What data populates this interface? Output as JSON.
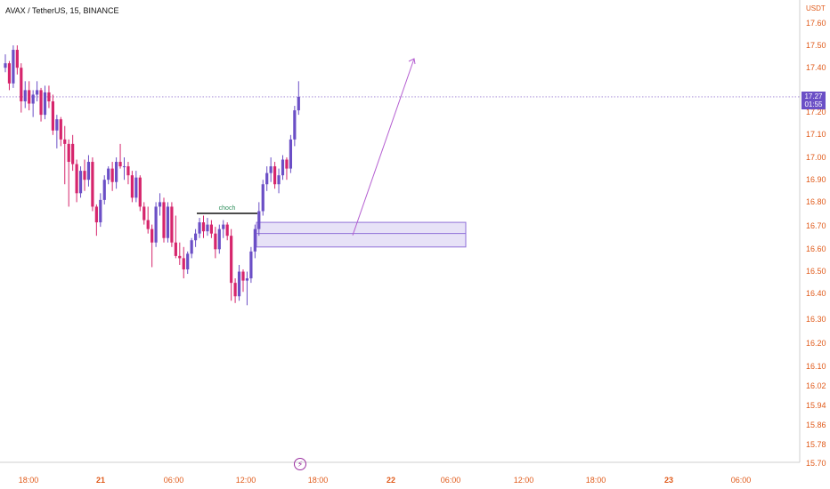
{
  "header": {
    "symbol_title": "AVAX / TetherUS, 15, BINANCE"
  },
  "price_axis": {
    "currency": "USDT",
    "ticks": [
      "17.60",
      "17.50",
      "17.40",
      "17.20",
      "17.10",
      "17.00",
      "16.90",
      "16.80",
      "16.70",
      "16.60",
      "16.50",
      "16.40",
      "16.30",
      "16.20",
      "16.10",
      "16.02",
      "15.94",
      "15.86",
      "15.78",
      "15.70"
    ],
    "current_price": "17.27",
    "countdown": "01:55"
  },
  "time_axis": {
    "ticks": [
      {
        "label": "18:00",
        "bold": false
      },
      {
        "label": "21",
        "bold": true
      },
      {
        "label": "06:00",
        "bold": false
      },
      {
        "label": "12:00",
        "bold": false
      },
      {
        "label": "18:00",
        "bold": false
      },
      {
        "label": "22",
        "bold": true
      },
      {
        "label": "06:00",
        "bold": false
      },
      {
        "label": "12:00",
        "bold": false
      },
      {
        "label": "18:00",
        "bold": false
      },
      {
        "label": "23",
        "bold": true
      },
      {
        "label": "06:00",
        "bold": false
      }
    ]
  },
  "annotations": {
    "choch_label": "choch",
    "flash_icon": "lightning-icon"
  },
  "colors": {
    "up": "#6b4fc6",
    "down": "#d6256c",
    "zone_fill": "#e7e2f7",
    "zone_border": "#8f6fd8",
    "arrow": "#b55fd1",
    "price_line": "#9c7fd4",
    "axis_text": "#e05a1a"
  },
  "chart_data": {
    "type": "candlestick",
    "symbol": "AVAX / TetherUS",
    "interval": "15",
    "exchange": "BINANCE",
    "ylim": [
      15.7,
      17.62
    ],
    "last_price": 17.27,
    "candles": [
      [
        17.4,
        17.46,
        17.38,
        17.42
      ],
      [
        17.42,
        17.43,
        17.3,
        17.33
      ],
      [
        17.33,
        17.5,
        17.31,
        17.48
      ],
      [
        17.48,
        17.5,
        17.37,
        17.4
      ],
      [
        17.4,
        17.42,
        17.2,
        17.25
      ],
      [
        17.25,
        17.34,
        17.22,
        17.3
      ],
      [
        17.3,
        17.34,
        17.21,
        17.24
      ],
      [
        17.24,
        17.3,
        17.18,
        17.28
      ],
      [
        17.28,
        17.34,
        17.25,
        17.3
      ],
      [
        17.3,
        17.31,
        17.16,
        17.19
      ],
      [
        17.19,
        17.32,
        17.17,
        17.29
      ],
      [
        17.29,
        17.32,
        17.22,
        17.25
      ],
      [
        17.25,
        17.28,
        17.1,
        17.12
      ],
      [
        17.12,
        17.19,
        17.04,
        17.17
      ],
      [
        17.17,
        17.18,
        17.05,
        17.08
      ],
      [
        17.08,
        17.14,
        16.88,
        17.06
      ],
      [
        17.06,
        17.08,
        16.78,
        16.98
      ],
      [
        17.06,
        17.1,
        16.94,
        16.97
      ],
      [
        16.97,
        16.99,
        16.8,
        16.84
      ],
      [
        16.84,
        16.96,
        16.82,
        16.94
      ],
      [
        16.94,
        16.99,
        16.85,
        16.9
      ],
      [
        16.9,
        17.01,
        16.87,
        16.98
      ],
      [
        16.98,
        17.0,
        16.76,
        16.78
      ],
      [
        16.78,
        16.79,
        16.65,
        16.71
      ],
      [
        16.71,
        16.84,
        16.69,
        16.81
      ],
      [
        16.81,
        16.92,
        16.79,
        16.9
      ],
      [
        16.9,
        16.96,
        16.88,
        16.95
      ],
      [
        16.95,
        16.98,
        16.85,
        16.89
      ],
      [
        16.89,
        17.0,
        16.86,
        16.98
      ],
      [
        16.98,
        17.06,
        16.95,
        16.96
      ],
      [
        16.96,
        17.0,
        16.9,
        16.96
      ],
      [
        16.96,
        16.98,
        16.88,
        16.92
      ],
      [
        16.92,
        16.94,
        16.8,
        16.82
      ],
      [
        16.82,
        16.94,
        16.8,
        16.91
      ],
      [
        16.91,
        16.92,
        16.76,
        16.78
      ],
      [
        16.78,
        16.8,
        16.7,
        16.72
      ],
      [
        16.72,
        16.78,
        16.66,
        16.68
      ],
      [
        16.68,
        16.7,
        16.51,
        16.62
      ],
      [
        16.62,
        16.8,
        16.6,
        16.78
      ],
      [
        16.78,
        16.84,
        16.74,
        16.8
      ],
      [
        16.8,
        16.82,
        16.62,
        16.64
      ],
      [
        16.64,
        16.8,
        16.62,
        16.78
      ],
      [
        16.78,
        16.8,
        16.6,
        16.62
      ],
      [
        16.62,
        16.74,
        16.55,
        16.56
      ],
      [
        16.56,
        16.62,
        16.52,
        16.55
      ],
      [
        16.55,
        16.6,
        16.46,
        16.5
      ],
      [
        16.5,
        16.58,
        16.48,
        16.57
      ],
      [
        16.57,
        16.64,
        16.55,
        16.63
      ],
      [
        16.63,
        16.68,
        16.6,
        16.66
      ],
      [
        16.66,
        16.73,
        16.64,
        16.71
      ],
      [
        16.71,
        16.74,
        16.64,
        16.67
      ],
      [
        16.67,
        16.73,
        16.65,
        16.7
      ],
      [
        16.7,
        16.72,
        16.64,
        16.66
      ],
      [
        16.66,
        16.69,
        16.55,
        16.59
      ],
      [
        16.59,
        16.7,
        16.57,
        16.68
      ],
      [
        16.68,
        16.72,
        16.64,
        16.7
      ],
      [
        16.7,
        16.71,
        16.63,
        16.65
      ],
      [
        16.65,
        16.68,
        16.36,
        16.44
      ],
      [
        16.44,
        16.46,
        16.35,
        16.38
      ],
      [
        16.38,
        16.52,
        16.36,
        16.49
      ],
      [
        16.49,
        16.5,
        16.4,
        16.45
      ],
      [
        16.45,
        16.49,
        16.34,
        16.46
      ],
      [
        16.46,
        16.6,
        16.44,
        16.58
      ],
      [
        16.58,
        16.7,
        16.55,
        16.68
      ],
      [
        16.68,
        16.8,
        16.65,
        16.76
      ],
      [
        16.76,
        16.9,
        16.74,
        16.88
      ],
      [
        16.88,
        16.96,
        16.85,
        16.93
      ],
      [
        16.93,
        17.0,
        16.89,
        16.96
      ],
      [
        16.96,
        16.98,
        16.86,
        16.88
      ],
      [
        16.88,
        16.95,
        16.84,
        16.92
      ],
      [
        16.92,
        17.01,
        16.9,
        16.99
      ],
      [
        16.99,
        17.0,
        16.9,
        16.95
      ],
      [
        16.95,
        17.1,
        16.93,
        17.08
      ],
      [
        17.08,
        17.23,
        17.05,
        17.21
      ],
      [
        17.21,
        17.34,
        17.19,
        17.27
      ]
    ],
    "zones": [
      {
        "label": "demand-zone",
        "top": 16.71,
        "mid": 16.66,
        "bottom": 16.6
      }
    ],
    "choch": {
      "price": 16.75,
      "label": "choch"
    },
    "projection": {
      "from": 16.66,
      "to": 17.45
    }
  }
}
